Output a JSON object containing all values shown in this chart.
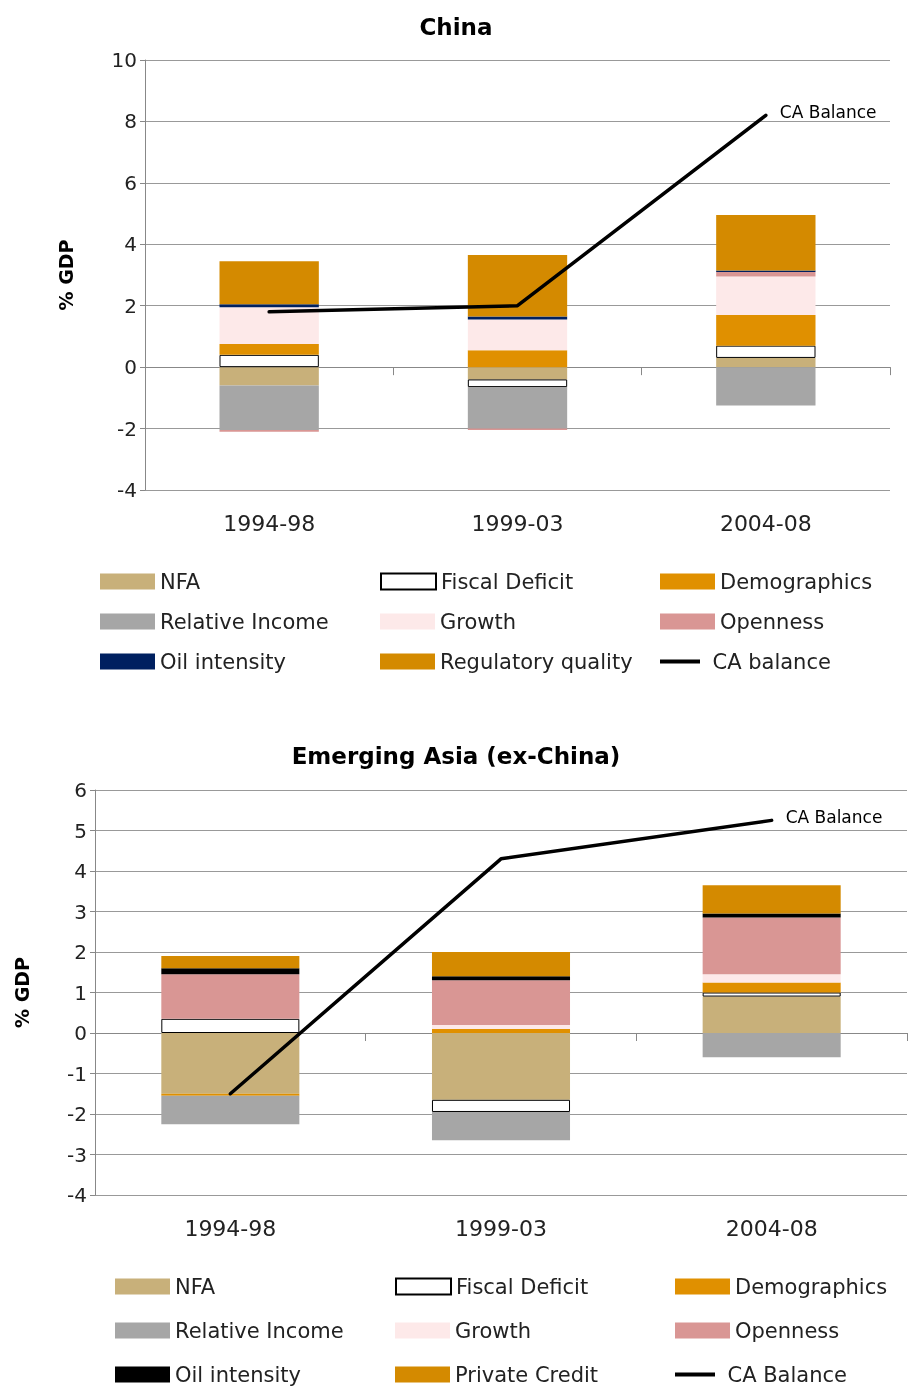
{
  "chart_data": [
    {
      "type": "bar",
      "title": "China",
      "ylabel": "% GDP",
      "categories": [
        "1994-98",
        "1999-03",
        "2004-08"
      ],
      "stacked": true,
      "ylim": [
        -4,
        10
      ],
      "yticks": [
        -4,
        -2,
        0,
        2,
        4,
        6,
        8,
        10
      ],
      "grid": "y",
      "legend": "bottom",
      "marker": "none",
      "line_style": "solid",
      "annotations": [
        {
          "text": "CA Balance",
          "x": "2004-08",
          "y": 8.2
        }
      ],
      "series": [
        {
          "name": "NFA",
          "color": "#c8b07a",
          "values": [
            -0.6,
            -0.4,
            0.3
          ]
        },
        {
          "name": "Fiscal Deficit",
          "color": "#ffffff",
          "values": [
            0.4,
            -0.25,
            0.4
          ]
        },
        {
          "name": "Demographics",
          "color": "#e09000",
          "values": [
            0.35,
            0.55,
            1.0
          ]
        },
        {
          "name": "Relative Income",
          "color": "#a6a6a6",
          "values": [
            -1.45,
            -1.35,
            -1.25
          ]
        },
        {
          "name": "Growth",
          "color": "#fde9e9",
          "values": [
            1.2,
            1.0,
            1.25
          ]
        },
        {
          "name": "Openness",
          "color": "#d99694",
          "values": [
            -0.05,
            -0.05,
            0.15
          ]
        },
        {
          "name": "Oil intensity",
          "color": "#002060",
          "values": [
            0.1,
            0.1,
            0.05
          ]
        },
        {
          "name": "Regulatory quality",
          "color": "#d48a00",
          "values": [
            1.4,
            2.0,
            1.8
          ]
        },
        {
          "name": "CA balance",
          "type": "line",
          "color": "#000000",
          "values": [
            1.8,
            2.0,
            8.2
          ]
        }
      ]
    },
    {
      "type": "bar",
      "title": "Emerging Asia (ex-China)",
      "ylabel": "% GDP",
      "categories": [
        "1994-98",
        "1999-03",
        "2004-08"
      ],
      "stacked": true,
      "ylim": [
        -4,
        6
      ],
      "yticks": [
        -4,
        -3,
        -2,
        -1,
        0,
        1,
        2,
        3,
        4,
        5,
        6
      ],
      "grid": "y",
      "legend": "bottom",
      "marker": "none",
      "line_style": "solid",
      "annotations": [
        {
          "text": "CA Balance",
          "x": "2004-08",
          "y": 5.25
        }
      ],
      "series": [
        {
          "name": "NFA",
          "color": "#c8b07a",
          "values": [
            -1.5,
            -1.65,
            0.9
          ]
        },
        {
          "name": "Fiscal Deficit",
          "color": "#ffffff",
          "values": [
            0.35,
            -0.3,
            0.1
          ]
        },
        {
          "name": "Demographics",
          "color": "#e09000",
          "values": [
            -0.05,
            0.1,
            0.25
          ]
        },
        {
          "name": "Relative Income",
          "color": "#a6a6a6",
          "values": [
            -0.7,
            -0.7,
            -0.6
          ]
        },
        {
          "name": "Growth",
          "color": "#fde9e9",
          "values": [
            0,
            0.1,
            0.2
          ]
        },
        {
          "name": "Openness",
          "color": "#d99694",
          "values": [
            1.1,
            1.1,
            1.4
          ]
        },
        {
          "name": "Oil intensity",
          "color": "#000000",
          "values": [
            0.15,
            0.1,
            0.1
          ]
        },
        {
          "name": "Private Credit",
          "color": "#d48a00",
          "values": [
            0.3,
            0.6,
            0.7
          ]
        },
        {
          "name": "CA Balance",
          "type": "line",
          "color": "#000000",
          "values": [
            -1.5,
            4.3,
            5.25
          ]
        }
      ]
    }
  ]
}
